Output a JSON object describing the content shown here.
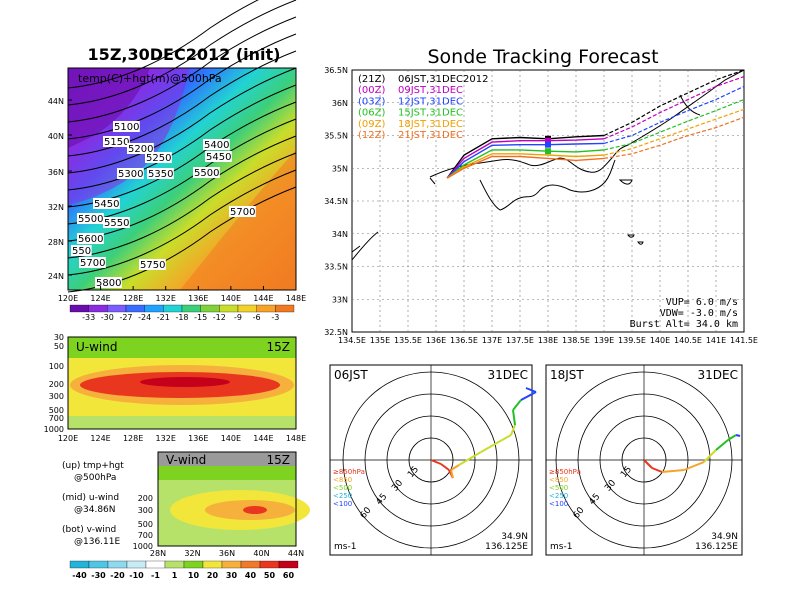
{
  "colors": {
    "temp_scale": [
      "#6a0dad",
      "#8a2be2",
      "#5a4fff",
      "#2f6fff",
      "#1fa3ff",
      "#22d3d3",
      "#3ccf7a",
      "#7fd23a",
      "#c9dd2a",
      "#f2d22a",
      "#f6a328",
      "#f07a22"
    ],
    "wind_scale": [
      "#22b4d9",
      "#4ec6e6",
      "#8fd9ef",
      "#c8ecf6",
      "#ffffff",
      "#b7e26a",
      "#7ed321",
      "#f3e63a",
      "#f6b13c",
      "#f07a2a",
      "#e8361f",
      "#c4001a"
    ],
    "traj_21z": "#000000",
    "traj_00z": "#c000c0",
    "traj_03z": "#2244ff",
    "traj_06z": "#22c022",
    "traj_09z": "#f0a000",
    "traj_12z": "#f07020"
  },
  "panel_top": {
    "title": "15Z,30DEC2012 (init)",
    "subtitle": "temp(C)+hgt(m)@500hPa",
    "lat_ticks": [
      "44N",
      "40N",
      "36N",
      "32N",
      "28N",
      "24N"
    ],
    "lon_ticks": [
      "120E",
      "124E",
      "128E",
      "132E",
      "136E",
      "140E",
      "144E",
      "148E"
    ],
    "contour_labels": [
      "5100",
      "5150",
      "5200",
      "5250",
      "5300",
      "5350",
      "5400",
      "5450",
      "5500",
      "5450",
      "5550",
      "5500",
      "5600",
      "5700",
      "5700",
      "5750",
      "5800",
      "550"
    ],
    "colorbar_labels": [
      "-33",
      "-30",
      "-27",
      "-24",
      "-21",
      "-18",
      "-15",
      "-12",
      "-9",
      "-6",
      "-3"
    ]
  },
  "panel_u": {
    "title": "U-wind",
    "time": "15Z",
    "p_ticks": [
      "30",
      "50",
      "100",
      "200",
      "300",
      "500",
      "700",
      "1000"
    ],
    "lon_ticks": [
      "120E",
      "124E",
      "128E",
      "132E",
      "136E",
      "140E",
      "144E",
      "148E"
    ]
  },
  "panel_v": {
    "title": "V-wind",
    "time": "15Z",
    "p_ticks": [
      "200",
      "300",
      "500",
      "700",
      "1000"
    ],
    "lat_ticks": [
      "28N",
      "32N",
      "36N",
      "40N",
      "44N"
    ],
    "colorbar_labels": [
      "-40",
      "-30",
      "-20",
      "-10",
      "-1",
      "1",
      "10",
      "20",
      "30",
      "40",
      "50",
      "60"
    ]
  },
  "legend_text": [
    {
      "l1": "(up) tmp+hgt",
      "l2": "@500hPa"
    },
    {
      "l1": "(mid) u-wind",
      "l2": "@34.86N"
    },
    {
      "l1": "(bot) v-wind",
      "l2": "@136.11E"
    }
  ],
  "map": {
    "title": "Sonde Tracking Forecast",
    "lat_ticks": [
      "36.5N",
      "36N",
      "35.5N",
      "35N",
      "34.5N",
      "34N",
      "33.5N",
      "33N",
      "32.5N"
    ],
    "lon_ticks": [
      "134.5E",
      "135E",
      "135.5E",
      "136E",
      "136.5E",
      "137E",
      "137.5E",
      "138E",
      "138.5E",
      "139E",
      "139.5E",
      "140E",
      "140.5E",
      "141E",
      "141.5E"
    ],
    "launches": [
      {
        "code": "(21Z)",
        "time": "06JST,31DEC2012"
      },
      {
        "code": "(00Z)",
        "time": "09JST,31DEC"
      },
      {
        "code": "(03Z)",
        "time": "12JST,31DEC"
      },
      {
        "code": "(06Z)",
        "time": "15JST,31DEC"
      },
      {
        "code": "(09Z)",
        "time": "18JST,31DEC"
      },
      {
        "code": "(12Z)",
        "time": "21JST,31DEC"
      }
    ],
    "vup": "VUP=  6.0  m/s",
    "vdw": "VDW= -3.0  m/s",
    "burst": "Burst Alt=  34.0  km"
  },
  "hodographs": [
    {
      "time": "06JST",
      "date": "31DEC",
      "lat": "34.9N",
      "lon": "136.125E",
      "unit": "ms-1"
    },
    {
      "time": "18JST",
      "date": "31DEC",
      "lat": "34.9N",
      "lon": "136.125E",
      "unit": "ms-1"
    }
  ],
  "hodo_rings": [
    "15",
    "30",
    "45",
    "60"
  ],
  "hodo_legend": [
    "≥850hPa",
    "<850",
    "<500",
    "<250",
    "<100"
  ],
  "chart_data": [
    {
      "type": "heatmap",
      "title": "15Z,30DEC2012 (init)",
      "subtitle": "temp(C)+hgt(m)@500hPa",
      "xlabel": "",
      "ylabel": "",
      "x_range": [
        "120E",
        "148E"
      ],
      "y_range": [
        "24N",
        "44N"
      ],
      "colorbar": [
        -33,
        -30,
        -27,
        -24,
        -21,
        -18,
        -15,
        -12,
        -9,
        -6,
        -3
      ],
      "height_contours_m": [
        5100,
        5150,
        5200,
        5250,
        5300,
        5350,
        5400,
        5450,
        5500,
        5550,
        5600,
        5700,
        5750,
        5800
      ]
    },
    {
      "type": "heatmap",
      "title": "U-wind",
      "time": "15Z",
      "x_range": [
        "120E",
        "148E"
      ],
      "y_range_hPa": [
        1000,
        30
      ],
      "colorbar": [
        -40,
        -30,
        -20,
        -10,
        -1,
        1,
        10,
        20,
        30,
        40,
        50,
        60
      ]
    },
    {
      "type": "heatmap",
      "title": "V-wind",
      "time": "15Z",
      "x_range": [
        "28N",
        "44N"
      ],
      "y_range_hPa": [
        1000,
        200
      ],
      "colorbar": [
        -40,
        -30,
        -20,
        -10,
        -1,
        1,
        10,
        20,
        30,
        40,
        50,
        60
      ]
    },
    {
      "type": "line",
      "title": "Sonde Tracking Forecast",
      "x_range": [
        134.5,
        141.5
      ],
      "y_range": [
        32.5,
        36.5
      ],
      "series": [
        {
          "name": "(21Z) 06JST,31DEC2012",
          "x": [
            136.2,
            136.5,
            137.0,
            137.5,
            138.0,
            138.5,
            139.0,
            139.5,
            140.0,
            140.5,
            141.0,
            141.5
          ],
          "y": [
            34.85,
            35.2,
            35.45,
            35.47,
            35.45,
            35.48,
            35.5,
            35.7,
            35.95,
            36.15,
            36.35,
            36.5
          ]
        },
        {
          "name": "(00Z) 09JST,31DEC",
          "x": [
            136.2,
            136.5,
            137.0,
            137.5,
            138.0,
            138.5,
            139.0,
            139.5,
            140.0,
            140.5,
            141.0,
            141.5
          ],
          "y": [
            34.85,
            35.15,
            35.4,
            35.42,
            35.42,
            35.43,
            35.45,
            35.63,
            35.85,
            36.05,
            36.25,
            36.4
          ]
        },
        {
          "name": "(03Z) 12JST,31DEC",
          "x": [
            136.2,
            136.5,
            137.0,
            137.5,
            138.0,
            138.5,
            139.0,
            139.5,
            140.0,
            140.5,
            141.0,
            141.5
          ],
          "y": [
            34.85,
            35.1,
            35.35,
            35.36,
            35.36,
            35.37,
            35.38,
            35.5,
            35.7,
            35.88,
            36.05,
            36.25
          ]
        },
        {
          "name": "(06Z) 15JST,31DEC",
          "x": [
            136.2,
            136.5,
            137.0,
            137.5,
            138.0,
            138.5,
            139.0,
            139.5,
            140.0,
            140.5,
            141.0,
            141.5
          ],
          "y": [
            34.85,
            35.05,
            35.28,
            35.28,
            35.26,
            35.25,
            35.28,
            35.38,
            35.55,
            35.72,
            35.88,
            36.05
          ]
        },
        {
          "name": "(09Z) 18JST,31DEC",
          "x": [
            136.2,
            136.5,
            137.0,
            137.5,
            138.0,
            138.5,
            139.0,
            139.5,
            140.0,
            140.5,
            141.0,
            141.5
          ],
          "y": [
            34.85,
            35.02,
            35.22,
            35.22,
            35.2,
            35.18,
            35.2,
            35.3,
            35.45,
            35.6,
            35.75,
            35.9
          ]
        },
        {
          "name": "(12Z) 21JST,31DEC",
          "x": [
            136.2,
            136.5,
            137.0,
            137.5,
            138.0,
            138.5,
            139.0,
            139.5,
            140.0,
            140.5,
            141.0,
            141.5
          ],
          "y": [
            34.85,
            35.0,
            35.18,
            35.18,
            35.15,
            35.12,
            35.15,
            35.22,
            35.35,
            35.5,
            35.62,
            35.78
          ]
        }
      ]
    }
  ]
}
